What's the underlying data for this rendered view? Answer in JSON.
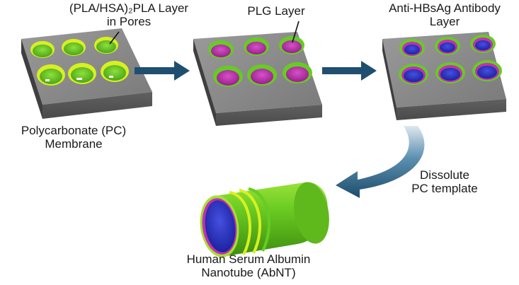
{
  "labels": {
    "pores_layer": [
      "(PLA/HSA)₂PLA Layer",
      "in Pores"
    ],
    "plg_layer": "PLG Layer",
    "antibody_layer": [
      "Anti-HBsAg Antibody",
      "Layer"
    ],
    "membrane": [
      "Polycarbonate (PC)",
      "Membrane"
    ],
    "dissolve": [
      "Dissolute",
      "PC template"
    ],
    "nanotube": [
      "Human Serum Albumin",
      "Nanotube (AbNT)"
    ]
  },
  "colors": {
    "membrane_top": "#8c8c8c",
    "membrane_front": "#575757",
    "membrane_side": "#3f3f3f",
    "pla_hsa_green": "#66cc22",
    "pla_hsa_highlight": "#d8f020",
    "plg_magenta": "#c030b0",
    "antibody_blue": "#2a30c8",
    "arrow_blue": "#1f4f70",
    "text": "#1a1a1a"
  }
}
